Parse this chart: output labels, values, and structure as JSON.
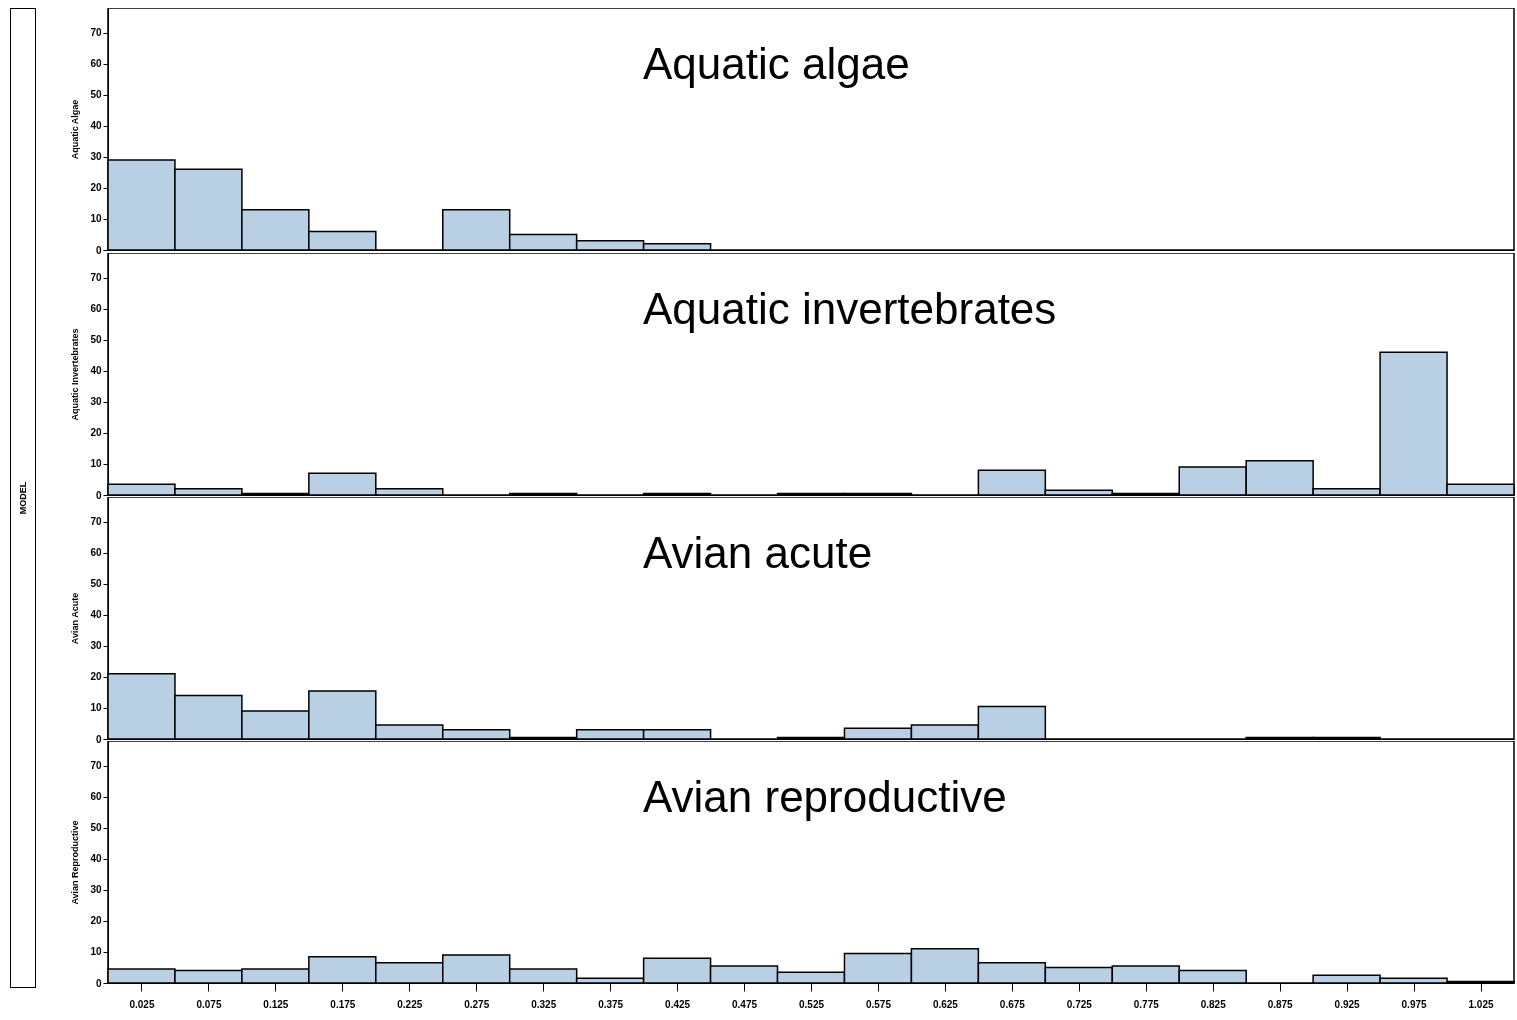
{
  "chart_data": [
    {
      "type": "histogram",
      "title": "Aquatic algae",
      "ylabel": "Aquatic Algae",
      "annotations": [
        "MODEL"
      ],
      "bins": [
        0,
        0.05,
        0.1,
        0.15,
        0.2,
        0.25,
        0.3,
        0.35,
        0.4,
        0.45,
        0.5,
        0.55,
        0.6,
        0.65,
        0.7,
        0.75,
        0.8,
        0.85,
        0.9,
        0.95,
        1.0,
        1.05
      ],
      "values": [
        29,
        26,
        13,
        6,
        0,
        13,
        5,
        3,
        2,
        0,
        0,
        0,
        0,
        0,
        0,
        0,
        0,
        0,
        0,
        0,
        0
      ],
      "color": "#b8cfe4",
      "xlim": [
        0,
        1.05
      ],
      "ylim": [
        0,
        78
      ],
      "yticks": [
        0,
        10,
        20,
        30,
        40,
        50,
        60,
        70
      ],
      "tick_labels": "y",
      "grid": false
    },
    {
      "type": "histogram",
      "title": "Aquatic invertebrates",
      "ylabel": "Aquatic Invertebrates",
      "bins": [
        0,
        0.05,
        0.1,
        0.15,
        0.2,
        0.25,
        0.3,
        0.35,
        0.4,
        0.45,
        0.5,
        0.55,
        0.6,
        0.65,
        0.7,
        0.75,
        0.8,
        0.85,
        0.9,
        0.95,
        1.0,
        1.05
      ],
      "values": [
        3.5,
        2,
        0.5,
        7,
        2,
        0,
        0.5,
        0,
        0.5,
        0,
        0.5,
        0.5,
        0,
        8,
        1.5,
        0.5,
        9,
        11,
        2,
        46,
        3.5
      ],
      "color": "#b8cfe4",
      "xlim": [
        0,
        1.05
      ],
      "ylim": [
        0,
        78
      ],
      "yticks": [
        0,
        10,
        20,
        30,
        40,
        50,
        60,
        70
      ],
      "tick_labels": "y",
      "grid": false
    },
    {
      "type": "histogram",
      "title": "Avian acute",
      "ylabel": "Avian Acute",
      "bins": [
        0,
        0.05,
        0.1,
        0.15,
        0.2,
        0.25,
        0.3,
        0.35,
        0.4,
        0.45,
        0.5,
        0.55,
        0.6,
        0.65,
        0.7,
        0.75,
        0.8,
        0.85,
        0.9,
        0.95,
        1.0,
        1.05
      ],
      "values": [
        21,
        14,
        9,
        15.5,
        4.5,
        3,
        0.5,
        3,
        3,
        0,
        0.5,
        3.5,
        4.5,
        10.5,
        0,
        0,
        0,
        0.5,
        0.5,
        0,
        0
      ],
      "color": "#b8cfe4",
      "xlim": [
        0,
        1.05
      ],
      "ylim": [
        0,
        78
      ],
      "yticks": [
        0,
        10,
        20,
        30,
        40,
        50,
        60,
        70
      ],
      "tick_labels": "y",
      "grid": false
    },
    {
      "type": "histogram",
      "title": "Avian reproductive",
      "ylabel": "Avian Reproductive",
      "bins": [
        0,
        0.05,
        0.1,
        0.15,
        0.2,
        0.25,
        0.3,
        0.35,
        0.4,
        0.45,
        0.5,
        0.55,
        0.6,
        0.65,
        0.7,
        0.75,
        0.8,
        0.85,
        0.9,
        0.95,
        1.0,
        1.05
      ],
      "values": [
        4.5,
        4,
        4.5,
        8.5,
        6.5,
        9,
        4.5,
        1.5,
        8,
        5.5,
        3.5,
        9.5,
        11,
        6.5,
        5,
        5.5,
        4,
        0,
        2.5,
        1.5,
        0.5
      ],
      "color": "#b8cfe4",
      "xlim": [
        0,
        1.05
      ],
      "ylim": [
        0,
        78
      ],
      "yticks": [
        0,
        10,
        20,
        30,
        40,
        50,
        60,
        70
      ],
      "xticks": [
        0.025,
        0.075,
        0.125,
        0.175,
        0.225,
        0.275,
        0.325,
        0.375,
        0.425,
        0.475,
        0.525,
        0.575,
        0.625,
        0.675,
        0.725,
        0.775,
        0.825,
        0.875,
        0.925,
        0.975,
        1.025
      ],
      "grid": false
    }
  ]
}
